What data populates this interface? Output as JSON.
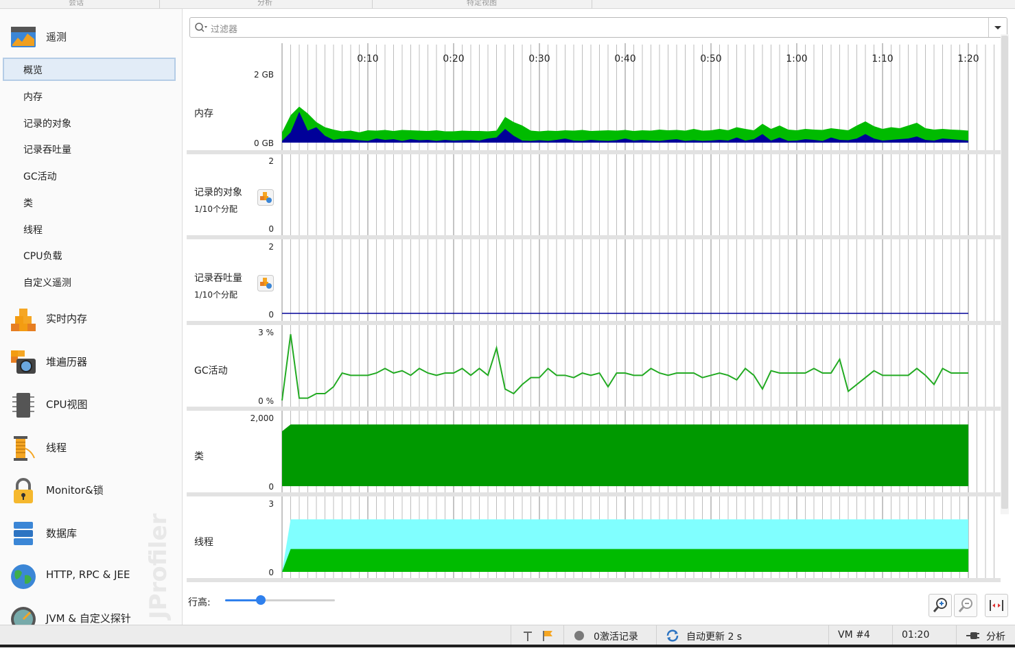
{
  "top_tabs": [
    "会话",
    "分析",
    "特定视图"
  ],
  "sidebar": {
    "telemetry": {
      "label": "遥测"
    },
    "subitems": [
      {
        "label": "概览",
        "selected": true
      },
      {
        "label": "内存",
        "selected": false
      },
      {
        "label": "记录的对象",
        "selected": false
      },
      {
        "label": "记录吞吐量",
        "selected": false
      },
      {
        "label": "GC活动",
        "selected": false
      },
      {
        "label": "类",
        "selected": false
      },
      {
        "label": "线程",
        "selected": false
      },
      {
        "label": "CPU负载",
        "selected": false
      },
      {
        "label": "自定义遥测",
        "selected": false
      }
    ],
    "sections": [
      {
        "label": "实时内存",
        "icon": "live-memory-icon"
      },
      {
        "label": "堆遍历器",
        "icon": "heap-walker-icon"
      },
      {
        "label": "CPU视图",
        "icon": "cpu-views-icon"
      },
      {
        "label": "线程",
        "icon": "threads-icon"
      },
      {
        "label": "Monitor&锁",
        "icon": "lock-icon"
      },
      {
        "label": "数据库",
        "icon": "database-icon"
      },
      {
        "label": "HTTP, RPC & JEE",
        "icon": "globe-icon"
      },
      {
        "label": "JVM & 自定义探针",
        "icon": "probes-icon"
      }
    ],
    "watermark": "JProfiler"
  },
  "filter": {
    "placeholder": "过滤器"
  },
  "time_axis": {
    "ticks": [
      "0:10",
      "0:20",
      "0:30",
      "0:40",
      "0:50",
      "1:00",
      "1:10",
      "1:20"
    ]
  },
  "telemetry_rows": [
    {
      "label": "内存",
      "sub": "",
      "ymax": "2 GB",
      "ymin": "0 GB"
    },
    {
      "label": "记录的对象",
      "sub": "1/10个分配",
      "ymax": "2",
      "ymin": "0"
    },
    {
      "label": "记录吞吐量",
      "sub": "1/10个分配",
      "ymax": "2",
      "ymin": "0"
    },
    {
      "label": "GC活动",
      "sub": "",
      "ymax": "3 %",
      "ymin": "0 %"
    },
    {
      "label": "类",
      "sub": "",
      "ymax": "2,000",
      "ymin": "0"
    },
    {
      "label": "线程",
      "sub": "",
      "ymax": "3",
      "ymin": "0"
    }
  ],
  "colors": {
    "green": "#00bb00",
    "darkgreen": "#009900",
    "navy": "#000099",
    "cyan": "#80ffff",
    "line": "#22aa22",
    "accent": "#2f80ed"
  },
  "chart_data": {
    "type": "area",
    "x_unit": "minutes",
    "x": [
      0,
      1,
      2,
      3,
      4,
      5,
      6,
      7,
      8,
      9,
      10,
      11,
      12,
      13,
      14,
      15,
      16,
      17,
      18,
      19,
      20,
      21,
      22,
      23,
      24,
      25,
      26,
      27,
      28,
      29,
      30,
      31,
      32,
      33,
      34,
      35,
      36,
      37,
      38,
      39,
      40,
      41,
      42,
      43,
      44,
      45,
      46,
      47,
      48,
      49,
      50,
      51,
      52,
      53,
      54,
      55,
      56,
      57,
      58,
      59,
      60,
      61,
      62,
      63,
      64,
      65,
      66,
      67,
      68,
      69,
      70,
      71,
      72,
      73,
      74,
      75,
      76,
      77,
      78,
      79,
      80
    ],
    "series": [
      {
        "panel": "内存",
        "values": [
          0.3,
          0.8,
          1.05,
          0.85,
          0.6,
          0.45,
          0.38,
          0.33,
          0.35,
          0.3,
          0.36,
          0.35,
          0.37,
          0.34,
          0.37,
          0.36,
          0.35,
          0.34,
          0.36,
          0.33,
          0.33,
          0.35,
          0.34,
          0.34,
          0.33,
          0.35,
          0.75,
          0.6,
          0.5,
          0.35,
          0.33,
          0.35,
          0.34,
          0.36,
          0.35,
          0.37,
          0.34,
          0.35,
          0.36,
          0.35,
          0.37,
          0.34,
          0.36,
          0.35,
          0.38,
          0.36,
          0.37,
          0.35,
          0.4,
          0.35,
          0.36,
          0.4,
          0.36,
          0.45,
          0.4,
          0.36,
          0.55,
          0.4,
          0.5,
          0.38,
          0.36,
          0.4,
          0.38,
          0.37,
          0.42,
          0.39,
          0.36,
          0.5,
          0.62,
          0.48,
          0.4,
          0.45,
          0.42,
          0.5,
          0.58,
          0.42,
          0.38,
          0.4,
          0.38,
          0.37,
          0.35
        ]
      },
      {
        "panel": "内存",
        "values": [
          0.05,
          0.3,
          0.9,
          0.35,
          0.45,
          0.2,
          0.08,
          0.12,
          0.1,
          0.07,
          0.05,
          0.12,
          0.08,
          0.1,
          0.05,
          0.1,
          0.07,
          0.08,
          0.05,
          0.08,
          0.06,
          0.07,
          0.08,
          0.06,
          0.12,
          0.15,
          0.4,
          0.2,
          0.06,
          0.05,
          0.07,
          0.05,
          0.08,
          0.12,
          0.06,
          0.05,
          0.08,
          0.06,
          0.05,
          0.07,
          0.12,
          0.06,
          0.08,
          0.06,
          0.05,
          0.08,
          0.1,
          0.05,
          0.07,
          0.05,
          0.06,
          0.08,
          0.06,
          0.15,
          0.06,
          0.1,
          0.25,
          0.06,
          0.15,
          0.05,
          0.06,
          0.1,
          0.08,
          0.05,
          0.15,
          0.08,
          0.07,
          0.12,
          0.25,
          0.12,
          0.06,
          0.08,
          0.1,
          0.12,
          0.18,
          0.08,
          0.06,
          0.12,
          0.1,
          0.08,
          0.06
        ]
      },
      {
        "panel": "GC活动",
        "values": [
          0,
          2.9,
          0.1,
          0.1,
          0.3,
          0.3,
          0.6,
          1.2,
          1.1,
          1.1,
          1.1,
          1.2,
          1.4,
          1.2,
          1.3,
          1.1,
          1.4,
          1.2,
          1.1,
          1.2,
          1.2,
          1.4,
          1.1,
          1.4,
          1.1,
          2.3,
          0.5,
          0.3,
          0.7,
          1.0,
          1.0,
          1.4,
          1.1,
          1.1,
          1.0,
          1.2,
          1.1,
          1.2,
          0.6,
          1.2,
          1.2,
          1.1,
          1.1,
          1.4,
          1.2,
          1.1,
          1.2,
          1.2,
          1.2,
          1.0,
          1.1,
          1.2,
          1.1,
          0.9,
          1.4,
          1.1,
          0.5,
          1.3,
          1.2,
          1.2,
          1.2,
          1.2,
          1.4,
          1.2,
          1.2,
          1.8,
          0.4,
          0.7,
          1.0,
          1.3,
          1.1,
          1.1,
          1.1,
          1.1,
          1.4,
          1.1,
          0.7,
          1.4,
          1.2,
          1.2,
          1.2
        ]
      }
    ],
    "classes": {
      "start": 1600,
      "steady": 1800
    },
    "threads": {
      "runnable": 1,
      "total": 2.3
    },
    "recorded_objects": 0,
    "recording_throughput": 0
  },
  "bottom": {
    "row_height_label": "行高:",
    "slider_value": 0.3
  },
  "status": {
    "recordings": "0激活记录",
    "autoupdate": "自动更新 2 s",
    "vm": "VM #4",
    "time": "01:20",
    "mode": "分析"
  }
}
